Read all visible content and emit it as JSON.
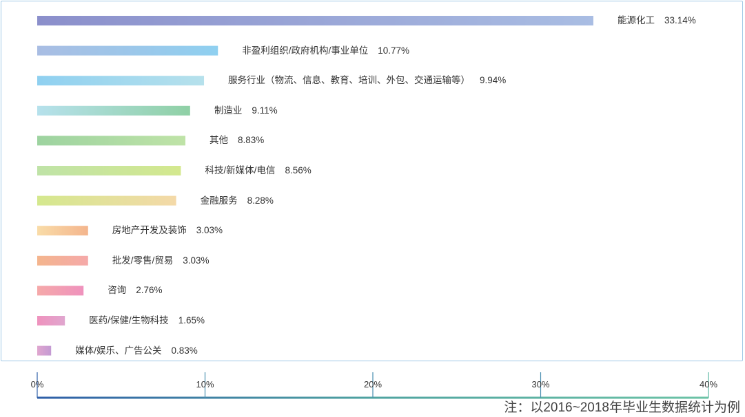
{
  "chart_data": {
    "type": "bar",
    "orientation": "horizontal",
    "categories": [
      "能源化工",
      "非盈利组织/政府机构/事业单位",
      "服务行业（物流、信息、教育、培训、外包、交通运输等）",
      "制造业",
      "其他",
      "科技/新媒体/电信",
      "金融服务",
      "房地产开发及装饰",
      "批发/零售/贸易",
      "咨询",
      "医药/保健/生物科技",
      "媒体/娱乐、广告公关"
    ],
    "values": [
      33.14,
      10.77,
      9.94,
      9.11,
      8.83,
      8.56,
      8.28,
      3.03,
      3.03,
      2.76,
      1.65,
      0.83
    ],
    "value_labels": [
      "33.14%",
      "10.77%",
      "9.94%",
      "9.11%",
      "8.83%",
      "8.56%",
      "8.28%",
      "3.03%",
      "3.03%",
      "2.76%",
      "1.65%",
      "0.83%"
    ],
    "xlim": [
      0,
      40
    ],
    "x_ticks": [
      "0%",
      "10%",
      "20%",
      "30%",
      "40%"
    ],
    "colors": [
      [
        "#8b8fcb",
        "#a9bde3"
      ],
      [
        "#a9bde3",
        "#8fd0f0"
      ],
      [
        "#8fd0f0",
        "#b6e1ec"
      ],
      [
        "#b6e1ec",
        "#8fd0a5"
      ],
      [
        "#9dd3a0",
        "#bfe3a7"
      ],
      [
        "#bfe3a7",
        "#d4e88e"
      ],
      [
        "#d4e88e",
        "#f4d9a8"
      ],
      [
        "#f9dca8",
        "#f4b58d"
      ],
      [
        "#f4b58d",
        "#f5a9a9"
      ],
      [
        "#f5a9a9",
        "#ef92bd"
      ],
      [
        "#ef92bd",
        "#e0a6cf"
      ],
      [
        "#e0a6cf",
        "#c49ad3"
      ]
    ],
    "axis_colors": [
      "#2f5fa8",
      "#4fa3a0",
      "#6cc3a6"
    ]
  },
  "note": "注：以2016~2018年毕业生数据统计为例"
}
